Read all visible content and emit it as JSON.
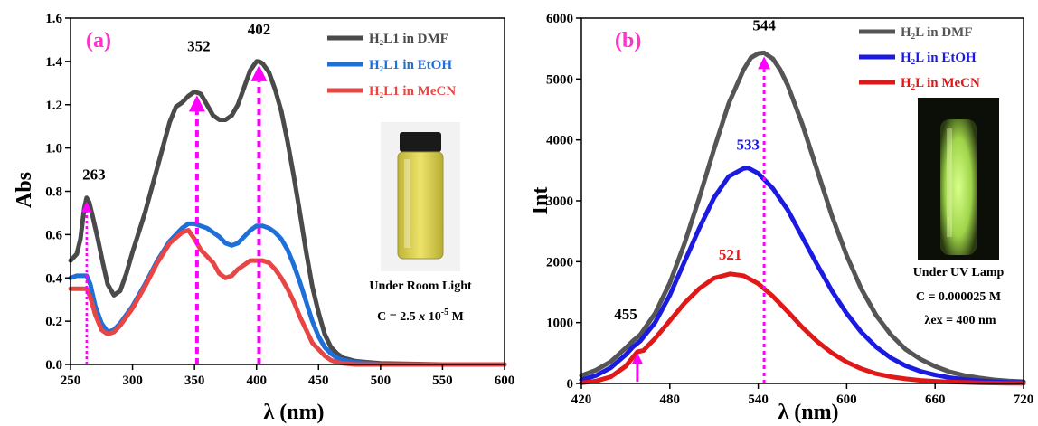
{
  "colors": {
    "dmf": "#4a4a4a",
    "etoh": "#1f6fd8",
    "mecn": "#e84545",
    "dmf_b": "#555555",
    "etoh_b": "#1a1ae0",
    "mecn_b": "#e01818",
    "arrow": "#ff00ff",
    "label": "#ff33cc"
  },
  "chart_data": [
    {
      "type": "line",
      "panel": "(a)",
      "xlabel": "λ (nm)",
      "ylabel": "Abs",
      "xlim": [
        250,
        600
      ],
      "ylim": [
        0,
        1.6
      ],
      "xticks": [
        250,
        300,
        350,
        400,
        450,
        500,
        550,
        600
      ],
      "yticks": [
        0.0,
        0.2,
        0.4,
        0.6,
        0.8,
        1.0,
        1.2,
        1.4,
        1.6
      ],
      "xtick_labels": [
        "250",
        "300",
        "350",
        "400",
        "450",
        "500",
        "550",
        "600"
      ],
      "ytick_labels": [
        "0.0",
        "0.2",
        "0.4",
        "0.6",
        "0.8",
        "1.0",
        "1.2",
        "1.4",
        "1.6"
      ],
      "legend": [
        "H₂L1 in DMF",
        "H₂L1 in EtOH",
        "H₂L1 in MeCN"
      ],
      "series": [
        {
          "name": "H₂L1 in DMF",
          "x": [
            250,
            255,
            258,
            261,
            263,
            265,
            268,
            272,
            276,
            280,
            285,
            290,
            295,
            300,
            310,
            320,
            330,
            335,
            340,
            345,
            350,
            355,
            360,
            365,
            370,
            375,
            380,
            385,
            390,
            395,
            400,
            402,
            405,
            410,
            415,
            420,
            425,
            430,
            435,
            440,
            445,
            450,
            455,
            460,
            465,
            470,
            480,
            490,
            500,
            550,
            600
          ],
          "y": [
            0.48,
            0.51,
            0.58,
            0.72,
            0.77,
            0.75,
            0.68,
            0.58,
            0.47,
            0.37,
            0.32,
            0.34,
            0.42,
            0.52,
            0.7,
            0.91,
            1.12,
            1.19,
            1.21,
            1.24,
            1.26,
            1.25,
            1.2,
            1.15,
            1.13,
            1.13,
            1.15,
            1.2,
            1.28,
            1.36,
            1.4,
            1.4,
            1.39,
            1.35,
            1.27,
            1.17,
            1.03,
            0.87,
            0.7,
            0.52,
            0.36,
            0.24,
            0.14,
            0.08,
            0.05,
            0.03,
            0.015,
            0.01,
            0.005,
            0.0,
            0.0
          ]
        },
        {
          "name": "H₂L1 in EtOH",
          "x": [
            250,
            255,
            260,
            263,
            266,
            270,
            275,
            280,
            285,
            290,
            300,
            310,
            320,
            330,
            340,
            345,
            350,
            355,
            360,
            365,
            370,
            375,
            380,
            385,
            390,
            395,
            400,
            405,
            410,
            415,
            420,
            425,
            430,
            435,
            440,
            445,
            450,
            455,
            460,
            465,
            470,
            480,
            490,
            500,
            550,
            600
          ],
          "y": [
            0.4,
            0.41,
            0.41,
            0.41,
            0.37,
            0.27,
            0.19,
            0.15,
            0.16,
            0.19,
            0.27,
            0.37,
            0.48,
            0.57,
            0.63,
            0.65,
            0.65,
            0.64,
            0.63,
            0.61,
            0.59,
            0.56,
            0.55,
            0.56,
            0.59,
            0.62,
            0.64,
            0.64,
            0.63,
            0.61,
            0.58,
            0.53,
            0.46,
            0.38,
            0.29,
            0.2,
            0.13,
            0.08,
            0.05,
            0.03,
            0.02,
            0.01,
            0.005,
            0.0,
            0.0,
            0.0
          ]
        },
        {
          "name": "H₂L1 in MeCN",
          "x": [
            250,
            255,
            260,
            263,
            266,
            270,
            275,
            280,
            285,
            290,
            300,
            310,
            320,
            330,
            340,
            345,
            350,
            355,
            360,
            365,
            370,
            375,
            380,
            385,
            390,
            395,
            400,
            405,
            410,
            415,
            420,
            425,
            430,
            435,
            440,
            445,
            450,
            455,
            460,
            465,
            470,
            480,
            490,
            500,
            550,
            600
          ],
          "y": [
            0.35,
            0.35,
            0.35,
            0.35,
            0.31,
            0.23,
            0.16,
            0.14,
            0.15,
            0.18,
            0.26,
            0.36,
            0.47,
            0.56,
            0.61,
            0.62,
            0.58,
            0.53,
            0.5,
            0.47,
            0.42,
            0.4,
            0.41,
            0.44,
            0.46,
            0.48,
            0.48,
            0.48,
            0.47,
            0.44,
            0.4,
            0.35,
            0.29,
            0.22,
            0.16,
            0.1,
            0.07,
            0.04,
            0.02,
            0.01,
            0.005,
            0.0,
            0.0,
            0.0,
            0.0,
            0.0
          ]
        }
      ],
      "peaks": [
        {
          "label": "263",
          "x": 263,
          "y": 0.77
        },
        {
          "label": "352",
          "x": 352,
          "y": 1.26
        },
        {
          "label": "402",
          "x": 402,
          "y": 1.4
        }
      ],
      "note_lines": [
        "Under Room Light"
      ],
      "conc_prefix": "C = 2.5 ",
      "conc_x": "x",
      "conc_mid": " 10",
      "conc_exp": "-5",
      "conc_suffix": " M"
    },
    {
      "type": "line",
      "panel": "(b)",
      "xlabel": "λ (nm)",
      "ylabel": "Int",
      "xlim": [
        420,
        720
      ],
      "ylim": [
        0,
        6000
      ],
      "xticks": [
        420,
        480,
        540,
        600,
        660,
        720
      ],
      "yticks": [
        0,
        1000,
        2000,
        3000,
        4000,
        5000,
        6000
      ],
      "xtick_labels": [
        "420",
        "480",
        "540",
        "600",
        "660",
        "720"
      ],
      "ytick_labels": [
        "0",
        "1000",
        "2000",
        "3000",
        "4000",
        "5000",
        "6000"
      ],
      "legend": [
        "H₂L in DMF",
        "H₂L in EtOH",
        "H₂L in MeCN"
      ],
      "series": [
        {
          "name": "H₂L in DMF",
          "x": [
            420,
            430,
            440,
            450,
            455,
            460,
            470,
            480,
            490,
            500,
            510,
            520,
            530,
            535,
            540,
            544,
            550,
            555,
            560,
            570,
            580,
            590,
            600,
            610,
            620,
            630,
            640,
            650,
            660,
            670,
            680,
            690,
            700,
            710,
            720
          ],
          "y": [
            130,
            220,
            360,
            580,
            700,
            800,
            1150,
            1650,
            2300,
            3050,
            3850,
            4600,
            5150,
            5350,
            5420,
            5430,
            5330,
            5150,
            4900,
            4250,
            3500,
            2750,
            2100,
            1550,
            1120,
            800,
            560,
            400,
            280,
            190,
            130,
            90,
            60,
            40,
            30
          ]
        },
        {
          "name": "H₂L in EtOH",
          "x": [
            420,
            430,
            440,
            450,
            455,
            460,
            470,
            480,
            490,
            500,
            510,
            520,
            530,
            533,
            540,
            550,
            560,
            570,
            580,
            590,
            600,
            610,
            620,
            630,
            640,
            650,
            660,
            670,
            680,
            690,
            700,
            710,
            720
          ],
          "y": [
            60,
            130,
            260,
            470,
            600,
            700,
            1000,
            1450,
            2000,
            2550,
            3050,
            3400,
            3530,
            3540,
            3450,
            3200,
            2850,
            2400,
            1950,
            1520,
            1150,
            840,
            600,
            420,
            290,
            200,
            140,
            95,
            65,
            45,
            30,
            20,
            15
          ]
        },
        {
          "name": "H₂L in MeCN",
          "x": [
            420,
            430,
            440,
            450,
            455,
            458,
            462,
            470,
            480,
            490,
            500,
            510,
            521,
            530,
            540,
            550,
            560,
            570,
            580,
            590,
            600,
            610,
            620,
            630,
            640,
            650,
            660,
            670,
            680,
            690,
            700,
            710,
            720
          ],
          "y": [
            10,
            40,
            110,
            280,
            430,
            520,
            540,
            740,
            1030,
            1320,
            1560,
            1730,
            1800,
            1770,
            1640,
            1430,
            1180,
            920,
            690,
            500,
            350,
            240,
            160,
            110,
            75,
            50,
            35,
            25,
            18,
            12,
            8,
            5,
            3
          ]
        }
      ],
      "peaks": [
        {
          "label": "455",
          "x": 455,
          "y": 700
        },
        {
          "label": "533",
          "x": 533,
          "y": 3540
        },
        {
          "label": "521",
          "x": 521,
          "y": 1800
        },
        {
          "label": "544",
          "x": 544,
          "y": 5430
        }
      ],
      "note_lines": [
        "Under UV Lamp",
        "C = 0.000025 M",
        "λex = 400 nm"
      ]
    }
  ]
}
